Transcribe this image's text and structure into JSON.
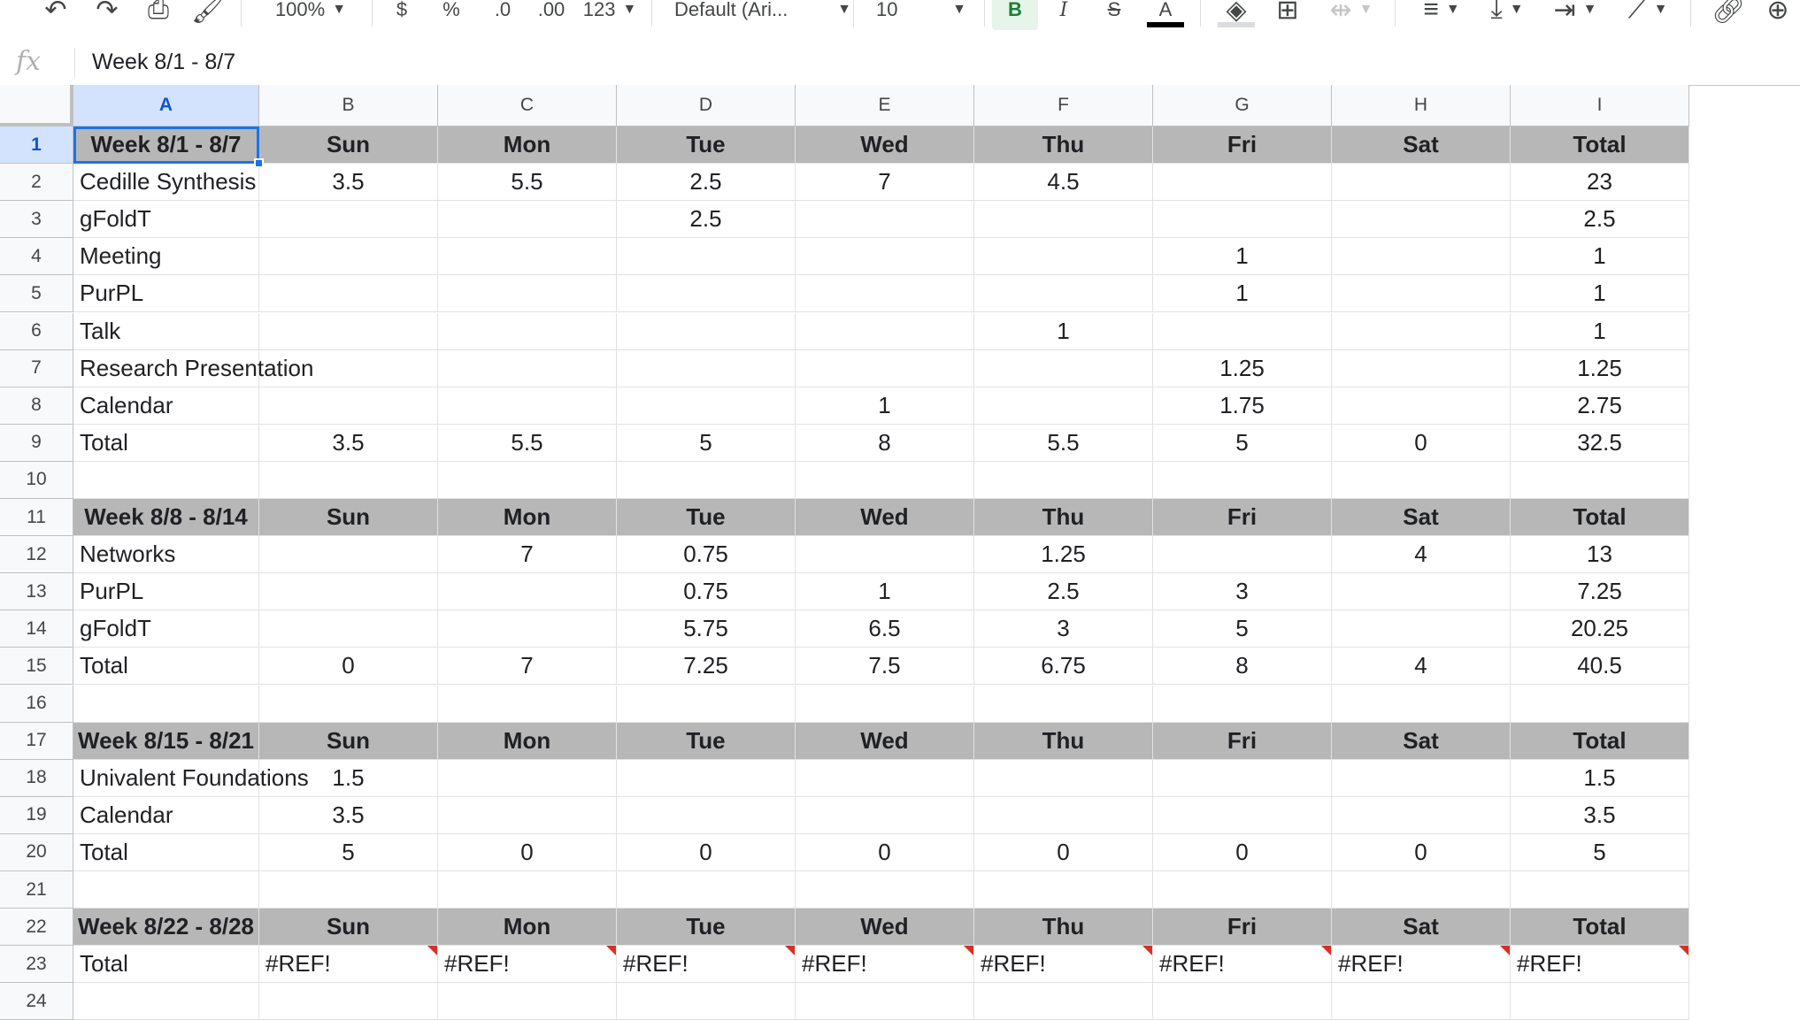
{
  "toolbar": {
    "zoom": "100%",
    "currency": "$",
    "percent": "%",
    "decrease_decimals": ".0",
    "increase_decimals": ".00",
    "more_formats": "123",
    "font": "Default (Ari...",
    "font_size": "10",
    "bold": "B",
    "italic": "I",
    "strikethrough": "S",
    "text_color": "A",
    "text_color_value": "#000000"
  },
  "formula_bar": {
    "fx": "fx",
    "value": "Week 8/1 - 8/7"
  },
  "grid": {
    "columns": [
      "A",
      "B",
      "C",
      "D",
      "E",
      "F",
      "G",
      "H",
      "I"
    ],
    "selected_cell": "A1",
    "rows": [
      {
        "n": "1",
        "header": true,
        "cells": [
          "Week 8/1 - 8/7",
          "Sun",
          "Mon",
          "Tue",
          "Wed",
          "Thu",
          "Fri",
          "Sat",
          "Total"
        ]
      },
      {
        "n": "2",
        "cells": [
          "Cedille Synthesis",
          "3.5",
          "5.5",
          "2.5",
          "7",
          "4.5",
          "",
          "",
          "23"
        ]
      },
      {
        "n": "3",
        "cells": [
          "gFoldT",
          "",
          "",
          "2.5",
          "",
          "",
          "",
          "",
          "2.5"
        ]
      },
      {
        "n": "4",
        "cells": [
          "Meeting",
          "",
          "",
          "",
          "",
          "",
          "1",
          "",
          "1"
        ]
      },
      {
        "n": "5",
        "cells": [
          "PurPL",
          "",
          "",
          "",
          "",
          "",
          "1",
          "",
          "1"
        ]
      },
      {
        "n": "6",
        "cells": [
          "Talk",
          "",
          "",
          "",
          "",
          "1",
          "",
          "",
          "1"
        ]
      },
      {
        "n": "7",
        "cells": [
          "Research Presentation",
          "",
          "",
          "",
          "",
          "",
          "1.25",
          "",
          "1.25"
        ]
      },
      {
        "n": "8",
        "cells": [
          "Calendar",
          "",
          "",
          "",
          "1",
          "",
          "1.75",
          "",
          "2.75"
        ]
      },
      {
        "n": "9",
        "cells": [
          "Total",
          "3.5",
          "5.5",
          "5",
          "8",
          "5.5",
          "5",
          "0",
          "32.5"
        ]
      },
      {
        "n": "10",
        "cells": [
          "",
          "",
          "",
          "",
          "",
          "",
          "",
          "",
          ""
        ]
      },
      {
        "n": "11",
        "header": true,
        "cells": [
          "Week 8/8 - 8/14",
          "Sun",
          "Mon",
          "Tue",
          "Wed",
          "Thu",
          "Fri",
          "Sat",
          "Total"
        ]
      },
      {
        "n": "12",
        "cells": [
          "Networks",
          "",
          "7",
          "0.75",
          "",
          "1.25",
          "",
          "4",
          "13"
        ]
      },
      {
        "n": "13",
        "cells": [
          "PurPL",
          "",
          "",
          "0.75",
          "1",
          "2.5",
          "3",
          "",
          "7.25"
        ]
      },
      {
        "n": "14",
        "cells": [
          "gFoldT",
          "",
          "",
          "5.75",
          "6.5",
          "3",
          "5",
          "",
          "20.25"
        ]
      },
      {
        "n": "15",
        "cells": [
          "Total",
          "0",
          "7",
          "7.25",
          "7.5",
          "6.75",
          "8",
          "4",
          "40.5"
        ]
      },
      {
        "n": "16",
        "cells": [
          "",
          "",
          "",
          "",
          "",
          "",
          "",
          "",
          ""
        ]
      },
      {
        "n": "17",
        "header": true,
        "cells": [
          "Week 8/15 - 8/21",
          "Sun",
          "Mon",
          "Tue",
          "Wed",
          "Thu",
          "Fri",
          "Sat",
          "Total"
        ]
      },
      {
        "n": "18",
        "cells": [
          "Univalent Foundations",
          "1.5",
          "",
          "",
          "",
          "",
          "",
          "",
          "1.5"
        ]
      },
      {
        "n": "19",
        "cells": [
          "Calendar",
          "3.5",
          "",
          "",
          "",
          "",
          "",
          "",
          "3.5"
        ]
      },
      {
        "n": "20",
        "cells": [
          "Total",
          "5",
          "0",
          "0",
          "0",
          "0",
          "0",
          "0",
          "5"
        ]
      },
      {
        "n": "21",
        "cells": [
          "",
          "",
          "",
          "",
          "",
          "",
          "",
          "",
          ""
        ]
      },
      {
        "n": "22",
        "header": true,
        "cells": [
          "Week 8/22 - 8/28",
          "Sun",
          "Mon",
          "Tue",
          "Wed",
          "Thu",
          "Fri",
          "Sat",
          "Total"
        ]
      },
      {
        "n": "23",
        "error": true,
        "cells": [
          "Total",
          "#REF!",
          "#REF!",
          "#REF!",
          "#REF!",
          "#REF!",
          "#REF!",
          "#REF!",
          "#REF!"
        ]
      },
      {
        "n": "24",
        "cells": [
          "",
          "",
          "",
          "",
          "",
          "",
          "",
          "",
          ""
        ]
      }
    ]
  },
  "colors": {
    "header_fill": "#b7b7b7",
    "selection": "#1a73e8",
    "error_marker": "#d93025",
    "bold_active": "#188038"
  }
}
